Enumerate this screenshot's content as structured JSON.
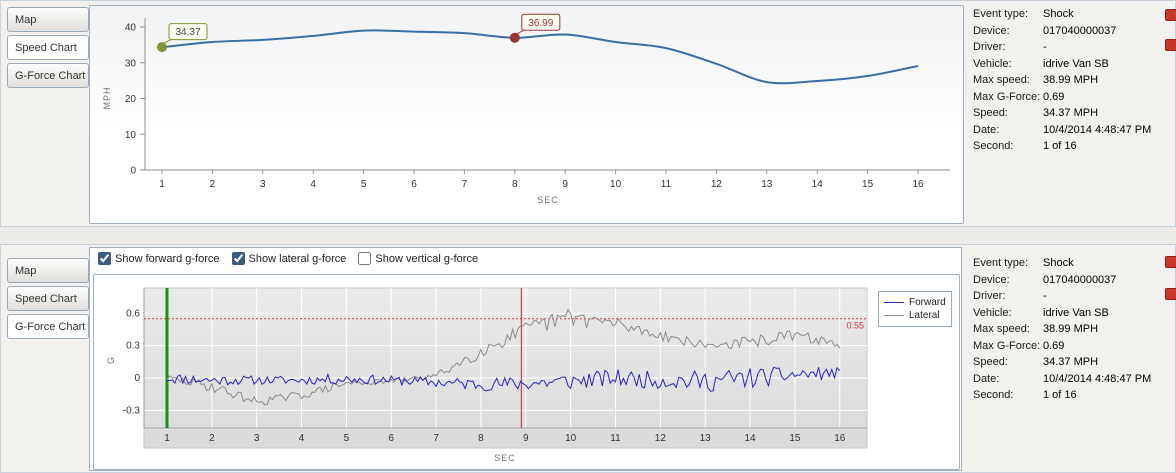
{
  "speed_panel": {
    "tabs": [
      {
        "label": "Map",
        "selected": false
      },
      {
        "label": "Speed Chart",
        "selected": true
      },
      {
        "label": "G-Force Chart",
        "selected": false
      }
    ]
  },
  "gforce_panel": {
    "tabs": [
      {
        "label": "Map",
        "selected": false
      },
      {
        "label": "Speed Chart",
        "selected": false
      },
      {
        "label": "G-Force Chart",
        "selected": true
      }
    ],
    "checkboxes": [
      {
        "label": "Show forward g-force",
        "checked": true
      },
      {
        "label": "Show lateral g-force",
        "checked": true
      },
      {
        "label": "Show vertical g-force",
        "checked": false
      }
    ]
  },
  "details": {
    "rows": [
      {
        "label": "Event type:",
        "value": "Shock"
      },
      {
        "label": "Device:",
        "value": "017040000037"
      },
      {
        "label": "Driver:",
        "value": "-"
      },
      {
        "label": "Vehicle:",
        "value": "idrive Van SB"
      },
      {
        "label": "Max speed:",
        "value": "38.99 MPH"
      },
      {
        "label": "Max G-Force:",
        "value": "0.69"
      },
      {
        "label": "Speed:",
        "value": "34.37 MPH"
      },
      {
        "label": "Date:",
        "value": "10/4/2014 4:48:47 PM"
      },
      {
        "label": "Second:",
        "value": "1 of 16"
      }
    ]
  },
  "chart_data": [
    {
      "type": "line",
      "title": "Speed Chart",
      "xlabel": "SEC",
      "ylabel": "MPH",
      "x": [
        1,
        2,
        3,
        4,
        5,
        6,
        7,
        8,
        9,
        10,
        11,
        12,
        13,
        14,
        15,
        16
      ],
      "values": [
        34.37,
        35.8,
        36.4,
        37.5,
        38.99,
        38.7,
        38.3,
        36.99,
        37.9,
        35.8,
        34.1,
        29.7,
        24.6,
        24.9,
        26.3,
        29.1
      ],
      "ylim": [
        0,
        40
      ],
      "yticks": [
        0,
        10,
        20,
        30,
        40
      ],
      "xticks": [
        1,
        2,
        3,
        4,
        5,
        6,
        7,
        8,
        9,
        10,
        11,
        12,
        13,
        14,
        15,
        16
      ],
      "line_color": "#3a6da6",
      "grid": false,
      "annotations": [
        {
          "x": 1,
          "y": 34.37,
          "label": "34.37",
          "color": "#7d9632",
          "text_color": "#444444"
        },
        {
          "x": 8,
          "y": 36.99,
          "label": "36.99",
          "color": "#9a3333",
          "text_color": "#9a3333"
        }
      ]
    },
    {
      "type": "line",
      "title": "G-Force Chart",
      "xlabel": "SEC",
      "ylabel": "G",
      "ylim": [
        -0.45,
        0.8
      ],
      "yticks": [
        -0.3,
        0,
        0.3,
        0.6
      ],
      "xticks": [
        1,
        2,
        3,
        4,
        5,
        6,
        7,
        8,
        9,
        10,
        11,
        12,
        13,
        14,
        15,
        16
      ],
      "grid": true,
      "threshold": {
        "y": 0.55,
        "label": "0.55",
        "color": "#cc3b3b"
      },
      "event_lines": [
        {
          "x": 1,
          "color": "#1e8a1e",
          "width": 3
        },
        {
          "x": 8.9,
          "color": "#cc2222",
          "width": 1
        }
      ],
      "series": [
        {
          "name": "Forward",
          "color": "#2525c6",
          "seed": 11,
          "mean_per_sec": [
            0,
            -0.02,
            -0.02,
            -0.02,
            -0.01,
            -0.02,
            -0.04,
            -0.06,
            -0.05,
            -0.03,
            0,
            -0.02,
            -0.03,
            0,
            0.03,
            0.05
          ],
          "noise_amp_per_sec": [
            0.05,
            0.05,
            0.04,
            0.04,
            0.05,
            0.04,
            0.05,
            0.06,
            0.07,
            0.08,
            0.08,
            0.08,
            0.1,
            0.1,
            0.07,
            0.05
          ]
        },
        {
          "name": "Lateral",
          "color": "#8c8c8c",
          "seed": 29,
          "mean_per_sec": [
            0,
            -0.08,
            -0.22,
            -0.16,
            -0.05,
            -0.03,
            0.02,
            0.25,
            0.45,
            0.57,
            0.5,
            0.4,
            0.3,
            0.33,
            0.4,
            0.31
          ],
          "noise_amp_per_sec": [
            0.03,
            0.05,
            0.04,
            0.04,
            0.03,
            0.02,
            0.03,
            0.07,
            0.07,
            0.09,
            0.07,
            0.05,
            0.04,
            0.06,
            0.05,
            0.04
          ]
        }
      ],
      "legend": {
        "position": "right",
        "entries": [
          "Forward",
          "Lateral"
        ]
      }
    }
  ]
}
